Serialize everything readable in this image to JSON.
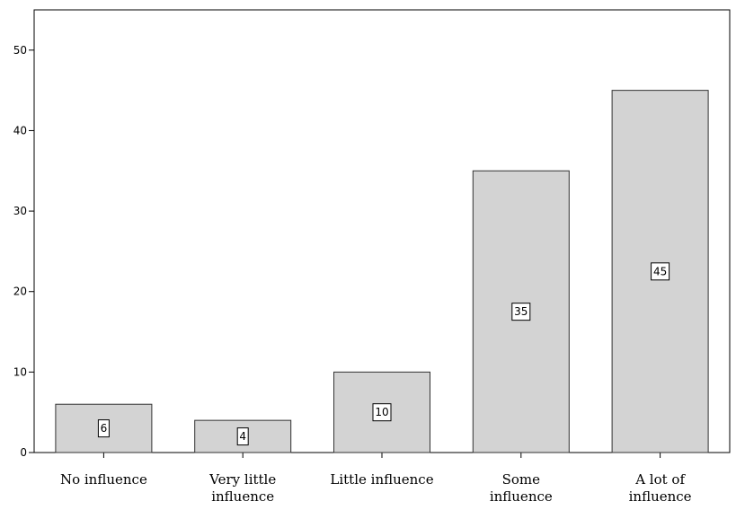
{
  "chart_data": {
    "type": "bar",
    "categories": [
      [
        "No influence"
      ],
      [
        "Very little",
        "influence"
      ],
      [
        "Little influence"
      ],
      [
        "Some",
        "influence"
      ],
      [
        "A lot of",
        "influence"
      ]
    ],
    "values": [
      6,
      4,
      10,
      35,
      45
    ],
    "data_labels": [
      "6",
      "4",
      "10",
      "35",
      "45"
    ],
    "ylim": [
      0,
      55
    ],
    "yticks": [
      0,
      10,
      20,
      30,
      40,
      50
    ],
    "title": "",
    "xlabel": "",
    "ylabel": "",
    "grid": false,
    "colors": {
      "bar_fill": "#d3d3d3",
      "bar_stroke": "#333333",
      "axis": "#000000"
    }
  }
}
